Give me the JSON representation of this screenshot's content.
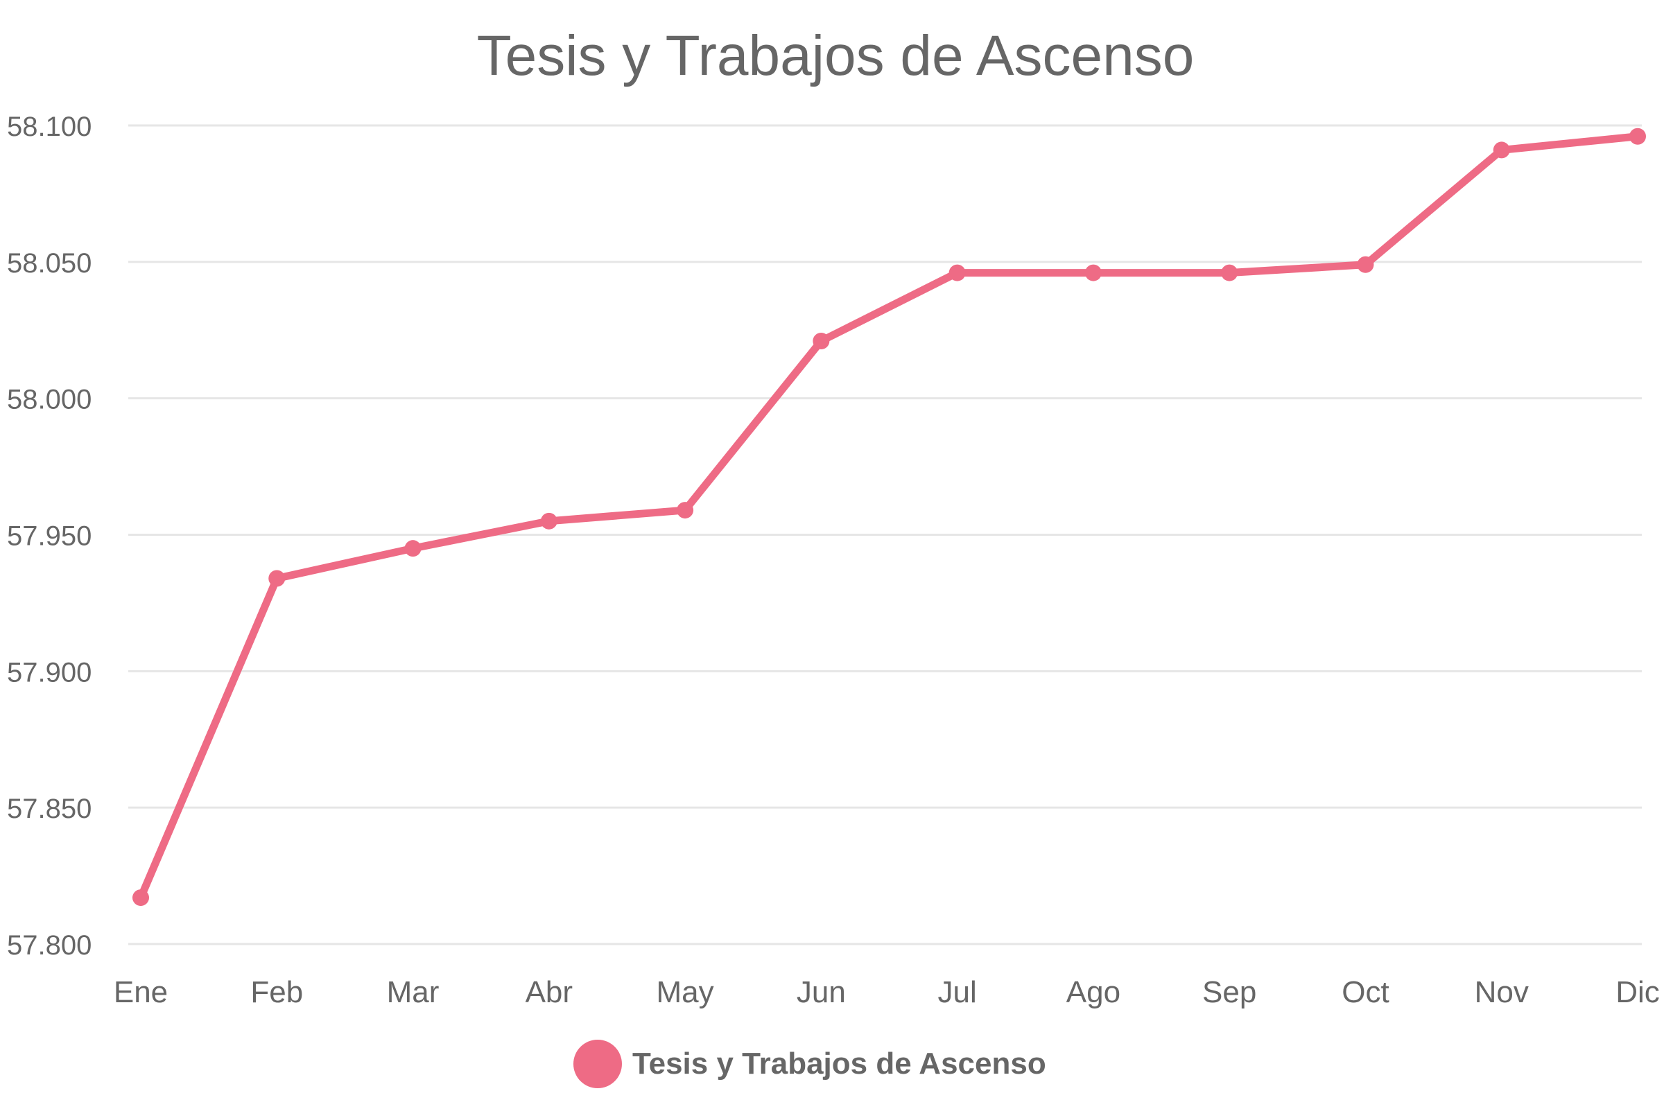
{
  "chart_data": {
    "type": "line",
    "title": "Tesis y Trabajos de Ascenso",
    "categories": [
      "Ene",
      "Feb",
      "Mar",
      "Abr",
      "May",
      "Jun",
      "Jul",
      "Ago",
      "Sep",
      "Oct",
      "Nov",
      "Dic"
    ],
    "series": [
      {
        "name": "Tesis y Trabajos de Ascenso",
        "values": [
          57817,
          57934,
          57945,
          57955,
          57959,
          58021,
          58046,
          58046,
          58046,
          58049,
          58091,
          58096
        ],
        "color": "#ee6b85"
      }
    ],
    "ylim": [
      57800,
      58100
    ],
    "y_ticks": [
      57800,
      57850,
      57900,
      57950,
      58000,
      58050,
      58100
    ],
    "y_tick_labels": [
      "57.800",
      "57.850",
      "57.900",
      "57.950",
      "58.000",
      "58.050",
      "58.100"
    ],
    "grid": "horizontal",
    "legend": "bottom-center",
    "grid_color": "#e6e6e6",
    "text_color": "#666666"
  }
}
